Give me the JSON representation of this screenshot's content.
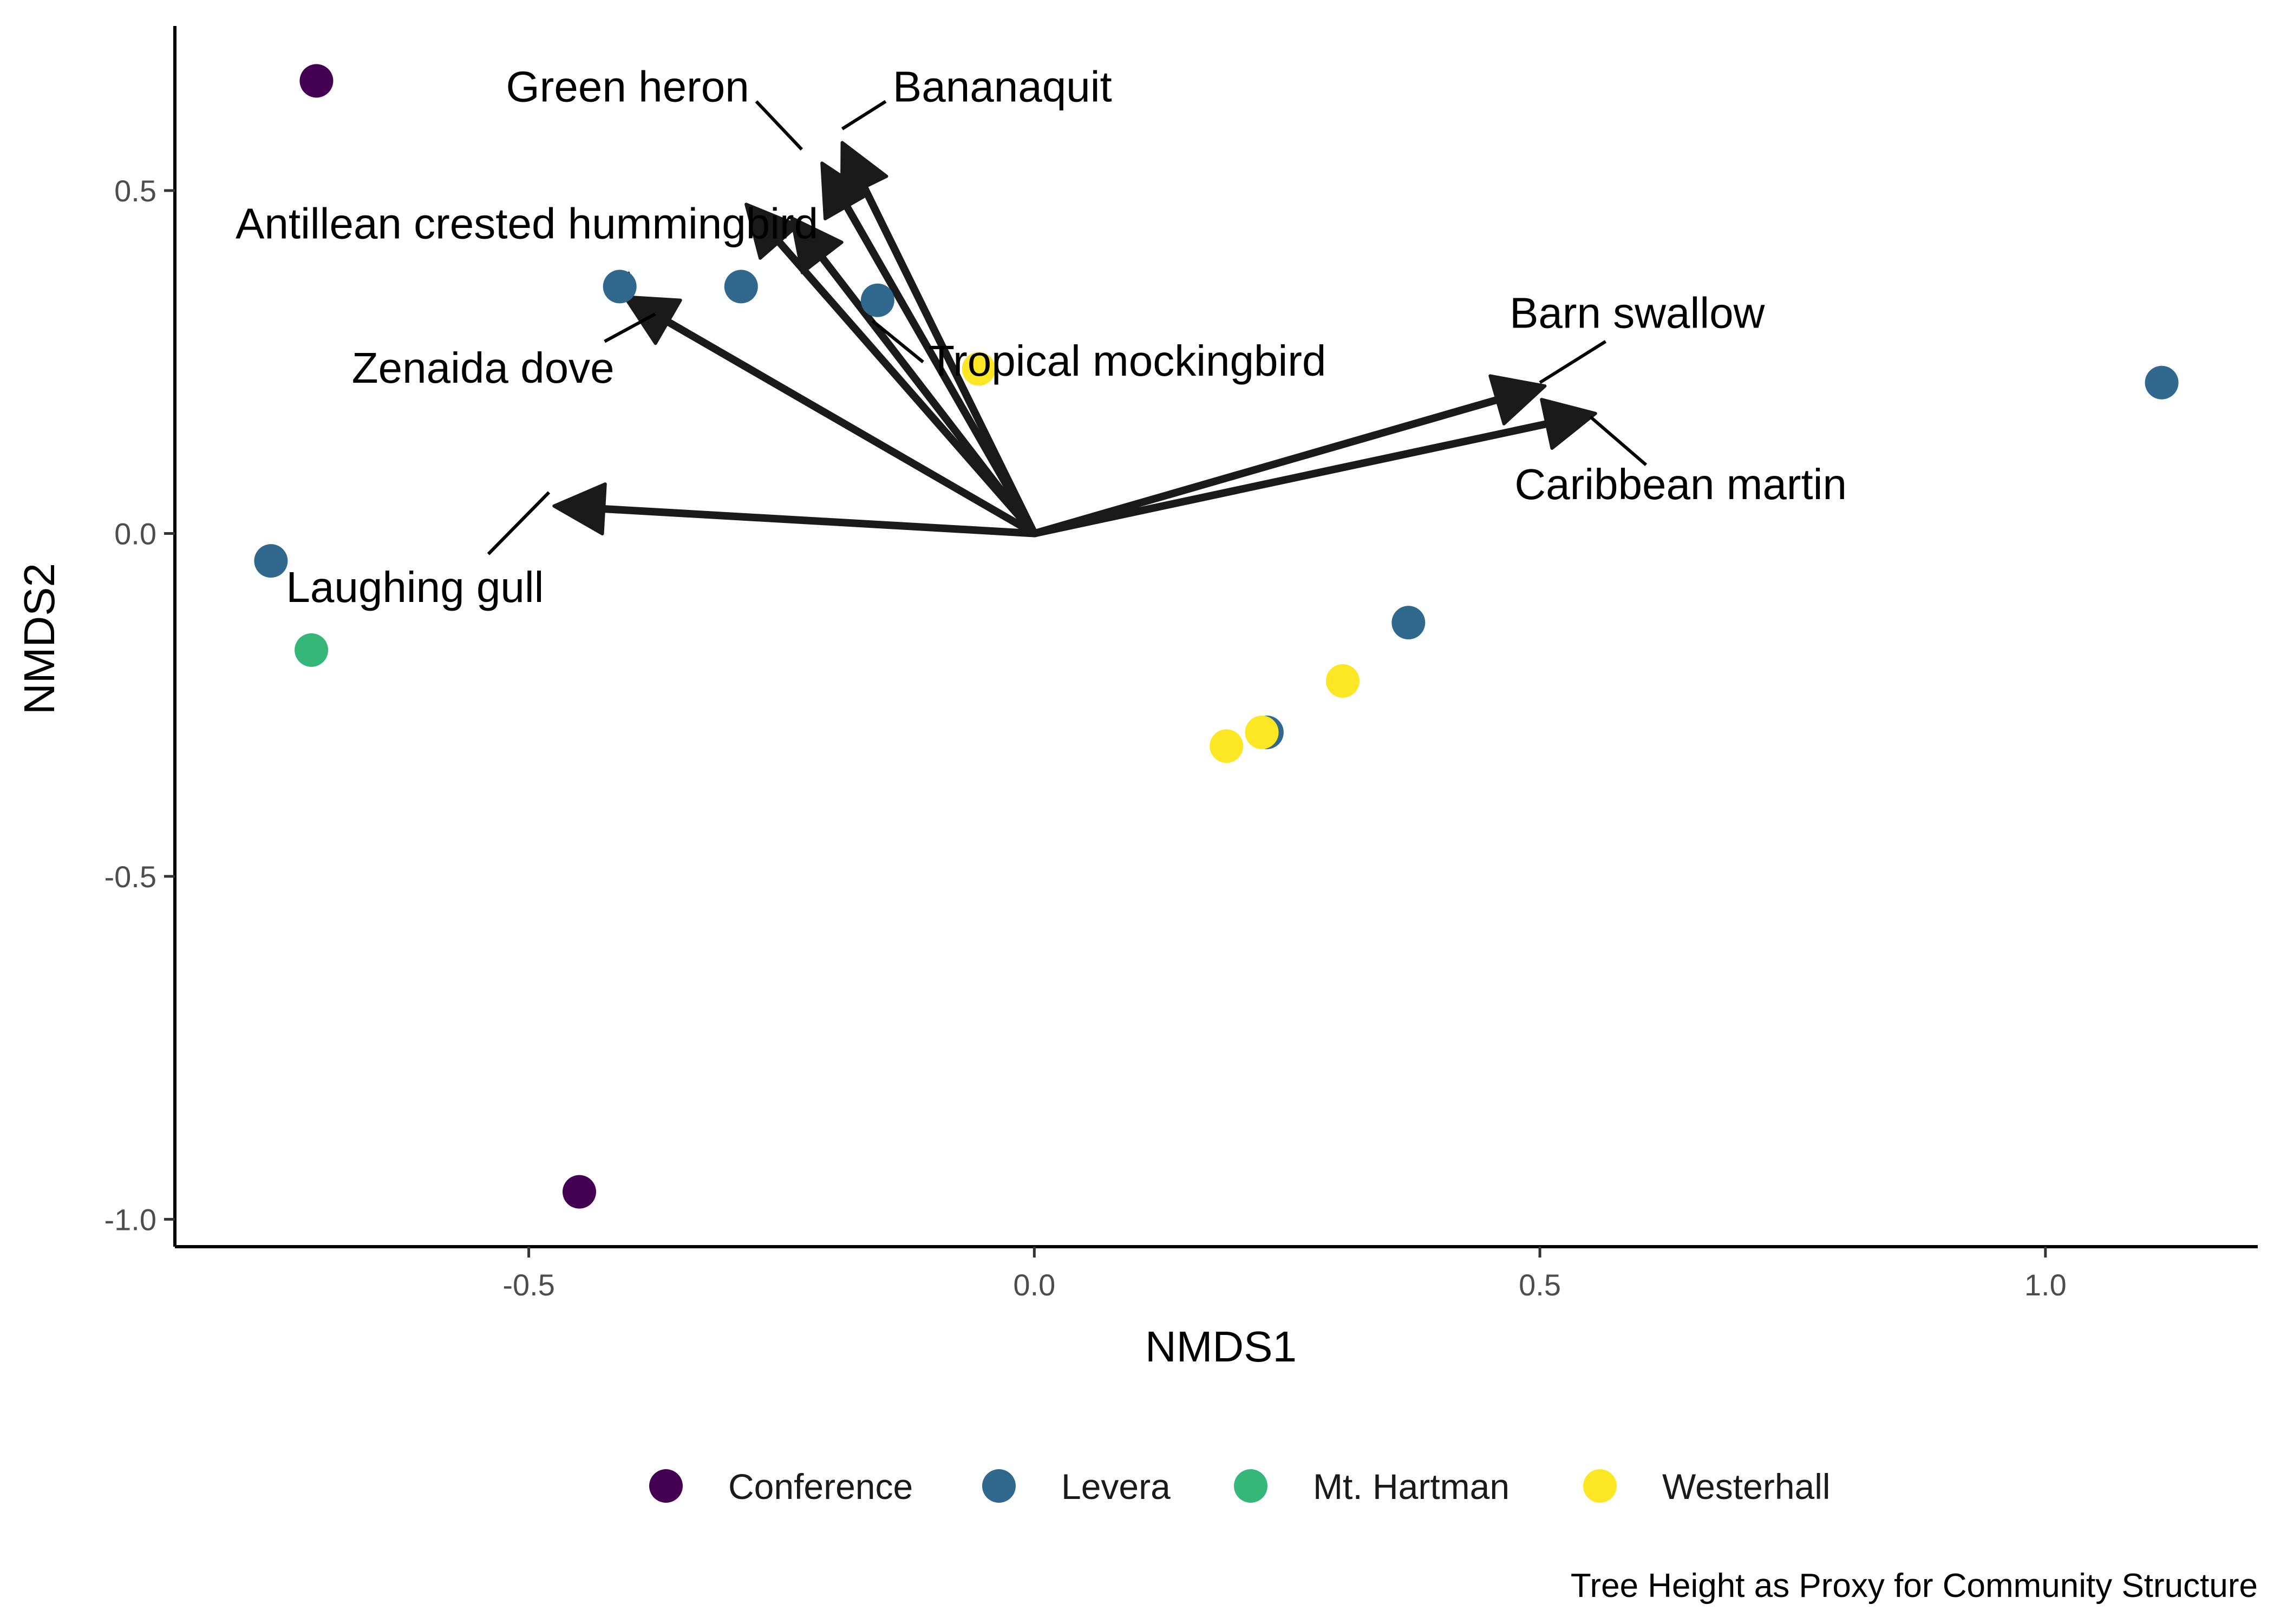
{
  "chart_data": {
    "type": "scatter",
    "title": "",
    "xlabel": "NMDS1",
    "ylabel": "NMDS2",
    "caption": "Tree Height as Proxy for Community Structure",
    "xlim": [
      -0.85,
      1.21
    ],
    "ylim": [
      -1.04,
      0.74
    ],
    "xticks": [
      -0.5,
      0.0,
      0.5,
      1.0
    ],
    "xtick_labels": [
      "-0.5",
      "0.0",
      "0.5",
      "1.0"
    ],
    "yticks": [
      -1.0,
      -0.5,
      0.0,
      0.5
    ],
    "ytick_labels": [
      "-1.0",
      "-0.5",
      "0.0",
      "0.5"
    ],
    "grid": false,
    "legend_position": "bottom",
    "legend": [
      {
        "name": "Conference",
        "color": "#440154"
      },
      {
        "name": "Levera",
        "color": "#31688E"
      },
      {
        "name": "Mt. Hartman",
        "color": "#35B779"
      },
      {
        "name": "Westerhall",
        "color": "#FDE725"
      }
    ],
    "points": [
      {
        "x": -0.71,
        "y": 0.66,
        "group": "Conference"
      },
      {
        "x": -0.45,
        "y": -0.96,
        "group": "Conference"
      },
      {
        "x": -0.41,
        "y": 0.36,
        "group": "Levera"
      },
      {
        "x": -0.29,
        "y": 0.36,
        "group": "Levera"
      },
      {
        "x": -0.155,
        "y": 0.34,
        "group": "Levera"
      },
      {
        "x": -0.755,
        "y": -0.04,
        "group": "Levera"
      },
      {
        "x": 0.37,
        "y": -0.13,
        "group": "Levera"
      },
      {
        "x": 1.115,
        "y": 0.22,
        "group": "Levera"
      },
      {
        "x": 0.23,
        "y": -0.29,
        "group": "Levera"
      },
      {
        "x": -0.715,
        "y": -0.17,
        "group": "Mt. Hartman"
      },
      {
        "x": -0.055,
        "y": 0.24,
        "group": "Westerhall"
      },
      {
        "x": 0.305,
        "y": -0.215,
        "group": "Westerhall"
      },
      {
        "x": 0.19,
        "y": -0.31,
        "group": "Westerhall"
      },
      {
        "x": 0.225,
        "y": -0.29,
        "group": "Westerhall"
      }
    ],
    "vectors": [
      {
        "name": "Green heron",
        "x": -0.21,
        "y": 0.54
      },
      {
        "name": "Bananaquit",
        "x": -0.19,
        "y": 0.57
      },
      {
        "name": "Antillean crested hummingbird",
        "x": -0.285,
        "y": 0.48
      },
      {
        "name": "Tropical mockingbird",
        "x": -0.24,
        "y": 0.46
      },
      {
        "name": "Zenaida dove",
        "x": -0.405,
        "y": 0.345
      },
      {
        "name": "Laughing gull",
        "x": -0.475,
        "y": 0.04
      },
      {
        "name": "Barn swallow",
        "x": 0.505,
        "y": 0.215
      },
      {
        "name": "Caribbean martin",
        "x": 0.555,
        "y": 0.175
      }
    ],
    "vector_labels": [
      {
        "name": "Green heron",
        "x": -0.282,
        "y": 0.63,
        "anchor": "end"
      },
      {
        "name": "Bananaquit",
        "x": -0.14,
        "y": 0.63,
        "anchor": "start"
      },
      {
        "name": "Antillean crested hummingbird",
        "x": -0.79,
        "y": 0.43,
        "anchor": "start"
      },
      {
        "name": "Tropical mockingbird",
        "x": -0.105,
        "y": 0.23,
        "anchor": "start"
      },
      {
        "name": "Zenaida dove",
        "x": -0.675,
        "y": 0.22,
        "anchor": "start"
      },
      {
        "name": "Laughing gull",
        "x": -0.74,
        "y": -0.1,
        "anchor": "start"
      },
      {
        "name": "Barn swallow",
        "x": 0.47,
        "y": 0.3,
        "anchor": "start"
      },
      {
        "name": "Caribbean martin",
        "x": 0.475,
        "y": 0.05,
        "anchor": "start"
      }
    ],
    "label_leaders": [
      {
        "from": [
          -0.275,
          0.63
        ],
        "to": [
          -0.23,
          0.56
        ]
      },
      {
        "from": [
          -0.147,
          0.63
        ],
        "to": [
          -0.19,
          0.59
        ]
      },
      {
        "from": [
          -0.4,
          0.38
        ],
        "to": [
          -0.425,
          0.36
        ]
      },
      {
        "from": [
          -0.11,
          0.25
        ],
        "to": [
          -0.16,
          0.31
        ]
      },
      {
        "from": [
          -0.375,
          0.32
        ],
        "to": [
          -0.425,
          0.28
        ]
      },
      {
        "from": [
          -0.48,
          0.06
        ],
        "to": [
          -0.54,
          -0.03
        ]
      },
      {
        "from": [
          0.5,
          0.22
        ],
        "to": [
          0.565,
          0.28
        ]
      },
      {
        "from": [
          0.55,
          0.17
        ],
        "to": [
          0.605,
          0.1
        ]
      }
    ]
  }
}
